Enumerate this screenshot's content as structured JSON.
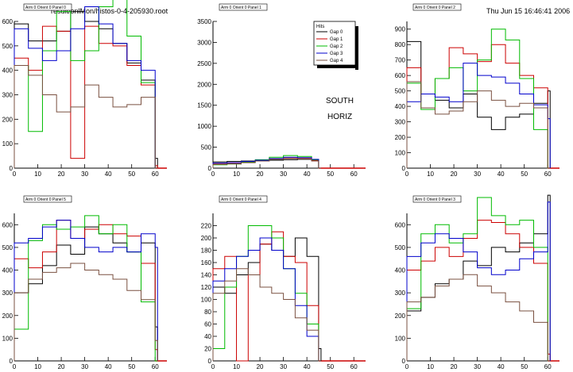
{
  "header": {
    "file_path": "result/onlMon/histos-0-4-205930.root",
    "timestamp": "Thu Jun 15 16:46:41 2006"
  },
  "colors": {
    "Gap 0": "#000000",
    "Gap 1": "#cc0000",
    "Gap 2": "#00bb00",
    "Gap 3": "#0000cc",
    "Gap 4": "#7a5040",
    "axis_overflow": "#cc0000"
  },
  "legend": {
    "title": "Hits",
    "entries": [
      "Gap 0",
      "Gap 1",
      "Gap 2",
      "Gap 3",
      "Gap 4"
    ]
  },
  "annotations": {
    "line1": "SOUTH",
    "line2": "HORIZ"
  },
  "chart_data": [
    {
      "type": "line",
      "title": "Arm 0 Orient 0 Panel 0",
      "x": [
        0,
        6,
        12,
        18,
        24,
        30,
        36,
        42,
        48,
        54,
        60
      ],
      "xlim": [
        0,
        65
      ],
      "ylim": [
        0,
        600
      ],
      "xticks": [
        0,
        10,
        20,
        30,
        40,
        50,
        60
      ],
      "yticks": [
        0,
        100,
        200,
        300,
        400,
        500,
        600
      ],
      "series": [
        {
          "name": "Gap 0",
          "values": [
            590,
            520,
            520,
            560,
            640,
            600,
            570,
            510,
            430,
            360,
            40
          ]
        },
        {
          "name": "Gap 1",
          "values": [
            450,
            400,
            580,
            560,
            40,
            580,
            510,
            500,
            420,
            340,
            10
          ]
        },
        {
          "name": "Gap 2",
          "values": [
            420,
            150,
            480,
            640,
            440,
            480,
            660,
            720,
            540,
            350,
            0
          ]
        },
        {
          "name": "Gap 3",
          "values": [
            570,
            490,
            440,
            480,
            570,
            660,
            590,
            510,
            440,
            400,
            0
          ]
        },
        {
          "name": "Gap 4",
          "values": [
            420,
            380,
            300,
            230,
            250,
            340,
            290,
            250,
            260,
            290,
            0
          ]
        }
      ]
    },
    {
      "type": "line",
      "title": "Arm 0 Orient 0 Panel 1",
      "x": [
        0,
        6,
        12,
        18,
        24,
        30,
        36,
        42,
        45
      ],
      "xlim": [
        0,
        65
      ],
      "ylim": [
        0,
        3500
      ],
      "xticks": [
        0,
        10,
        20,
        30,
        40,
        50,
        60
      ],
      "yticks": [
        0,
        500,
        1000,
        1500,
        2000,
        2500,
        3000,
        3500
      ],
      "series": [
        {
          "name": "Gap 0",
          "values": [
            150,
            160,
            170,
            180,
            190,
            200,
            210,
            200,
            0
          ]
        },
        {
          "name": "Gap 1",
          "values": [
            100,
            120,
            150,
            180,
            220,
            240,
            230,
            180,
            0
          ]
        },
        {
          "name": "Gap 2",
          "values": [
            80,
            100,
            140,
            200,
            260,
            300,
            280,
            200,
            0
          ]
        },
        {
          "name": "Gap 3",
          "values": [
            120,
            130,
            160,
            190,
            230,
            260,
            250,
            210,
            0
          ]
        },
        {
          "name": "Gap 4",
          "values": [
            90,
            100,
            130,
            170,
            210,
            230,
            220,
            170,
            0
          ]
        }
      ]
    },
    {
      "type": "line",
      "title": "Arm 0 Orient 0 Panel 2",
      "x": [
        0,
        6,
        12,
        18,
        24,
        30,
        36,
        42,
        48,
        54,
        60
      ],
      "xlim": [
        0,
        65
      ],
      "ylim": [
        0,
        950
      ],
      "xticks": [
        0,
        10,
        20,
        30,
        40,
        50,
        60
      ],
      "yticks": [
        0,
        100,
        200,
        300,
        400,
        500,
        600,
        700,
        800,
        900
      ],
      "series": [
        {
          "name": "Gap 0",
          "values": [
            820,
            480,
            440,
            390,
            480,
            330,
            250,
            330,
            350,
            420,
            500
          ]
        },
        {
          "name": "Gap 1",
          "values": [
            650,
            480,
            580,
            780,
            740,
            690,
            800,
            680,
            600,
            520,
            0
          ]
        },
        {
          "name": "Gap 2",
          "values": [
            550,
            380,
            580,
            650,
            500,
            700,
            900,
            830,
            580,
            250,
            0
          ]
        },
        {
          "name": "Gap 3",
          "values": [
            430,
            480,
            460,
            430,
            680,
            600,
            590,
            550,
            480,
            410,
            320
          ]
        },
        {
          "name": "Gap 4",
          "values": [
            560,
            390,
            350,
            370,
            430,
            500,
            440,
            400,
            420,
            390,
            0
          ]
        }
      ]
    },
    {
      "type": "line",
      "title": "Arm 0 Orient 0 Panel 5",
      "x": [
        0,
        6,
        12,
        18,
        24,
        30,
        36,
        42,
        48,
        54,
        60
      ],
      "xlim": [
        0,
        65
      ],
      "ylim": [
        0,
        650
      ],
      "xticks": [
        0,
        10,
        20,
        30,
        40,
        50,
        60
      ],
      "yticks": [
        0,
        100,
        200,
        300,
        400,
        500,
        600
      ],
      "series": [
        {
          "name": "Gap 0",
          "values": [
            300,
            340,
            420,
            510,
            470,
            590,
            560,
            520,
            480,
            520,
            150
          ]
        },
        {
          "name": "Gap 1",
          "values": [
            450,
            410,
            480,
            620,
            540,
            580,
            600,
            560,
            550,
            430,
            50
          ]
        },
        {
          "name": "Gap 2",
          "values": [
            140,
            530,
            600,
            580,
            590,
            640,
            560,
            600,
            480,
            260,
            0
          ]
        },
        {
          "name": "Gap 3",
          "values": [
            520,
            540,
            590,
            620,
            540,
            500,
            480,
            500,
            480,
            560,
            500
          ]
        },
        {
          "name": "Gap 4",
          "values": [
            300,
            360,
            390,
            410,
            430,
            400,
            380,
            360,
            310,
            270,
            90
          ]
        }
      ]
    },
    {
      "type": "line",
      "title": "Arm 0 Orient 0 Panel 4",
      "x": [
        0,
        5,
        10,
        15,
        20,
        25,
        30,
        35,
        40,
        45
      ],
      "xlim": [
        0,
        65
      ],
      "ylim": [
        0,
        240
      ],
      "xticks": [
        0,
        10,
        20,
        30,
        40,
        50,
        60
      ],
      "yticks": [
        0,
        20,
        40,
        60,
        80,
        100,
        120,
        140,
        160,
        180,
        200,
        220
      ],
      "series": [
        {
          "name": "Gap 0",
          "values": [
            120,
            110,
            140,
            160,
            190,
            180,
            170,
            200,
            170,
            20
          ]
        },
        {
          "name": "Gap 1",
          "values": [
            150,
            170,
            0,
            140,
            190,
            210,
            170,
            160,
            90,
            0
          ]
        },
        {
          "name": "Gap 2",
          "values": [
            20,
            120,
            170,
            220,
            220,
            200,
            150,
            110,
            60,
            0
          ]
        },
        {
          "name": "Gap 3",
          "values": [
            130,
            150,
            170,
            180,
            200,
            180,
            150,
            90,
            40,
            0
          ]
        },
        {
          "name": "Gap 4",
          "values": [
            110,
            130,
            150,
            140,
            120,
            110,
            100,
            70,
            50,
            0
          ]
        }
      ]
    },
    {
      "type": "line",
      "title": "Arm 0 Orient 0 Panel 3",
      "x": [
        0,
        6,
        12,
        18,
        24,
        30,
        36,
        42,
        48,
        54,
        60
      ],
      "xlim": [
        0,
        65
      ],
      "ylim": [
        0,
        650
      ],
      "xticks": [
        0,
        10,
        20,
        30,
        40,
        50,
        60
      ],
      "yticks": [
        0,
        100,
        200,
        300,
        400,
        500,
        600
      ],
      "series": [
        {
          "name": "Gap 0",
          "values": [
            220,
            280,
            340,
            360,
            440,
            420,
            500,
            480,
            520,
            560,
            730
          ]
        },
        {
          "name": "Gap 1",
          "values": [
            400,
            440,
            500,
            460,
            540,
            620,
            610,
            560,
            500,
            430,
            30
          ]
        },
        {
          "name": "Gap 2",
          "values": [
            230,
            560,
            600,
            520,
            560,
            720,
            640,
            600,
            620,
            500,
            0
          ]
        },
        {
          "name": "Gap 3",
          "values": [
            460,
            520,
            560,
            540,
            480,
            410,
            380,
            400,
            450,
            480,
            700
          ]
        },
        {
          "name": "Gap 4",
          "values": [
            260,
            280,
            330,
            360,
            380,
            330,
            300,
            260,
            220,
            170,
            0
          ]
        }
      ]
    }
  ]
}
